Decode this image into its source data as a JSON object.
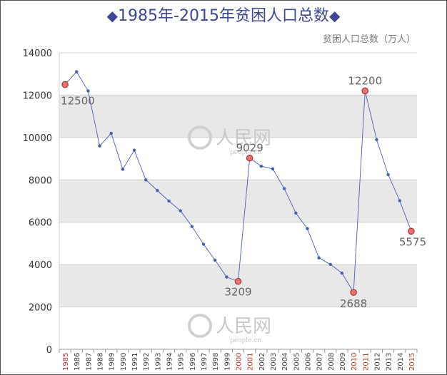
{
  "title_text": "1985年-2015年贫困人口总数",
  "diamond_glyph": "◆",
  "watermark": {
    "text": "人民网",
    "sub": "people.cn"
  },
  "chart_data": {
    "type": "line",
    "title": "1985年-2015年贫困人口总数",
    "ylabel": "贫困人口总数（万人）",
    "xlabel": "",
    "ylim": [
      0,
      14000
    ],
    "yticks": [
      0,
      2000,
      4000,
      6000,
      8000,
      10000,
      12000,
      14000
    ],
    "x": [
      "1985",
      "1986",
      "1987",
      "1988",
      "1989",
      "1990",
      "1991",
      "1992",
      "1993",
      "1994",
      "1995",
      "1996",
      "1997",
      "1998",
      "1999",
      "2000",
      "2001",
      "2002",
      "2003",
      "2004",
      "2005",
      "2006",
      "2007",
      "2008",
      "2009",
      "2010",
      "2011",
      "2012",
      "2013",
      "2014",
      "2015"
    ],
    "series": [
      {
        "name": "贫困人口总数",
        "color": "#4a5cb5",
        "values": [
          12500,
          13100,
          12200,
          9600,
          10200,
          8500,
          9400,
          8000,
          7500,
          7000,
          6540,
          5800,
          4962,
          4210,
          3412,
          3209,
          9029,
          8645,
          8517,
          7587,
          6432,
          5698,
          4320,
          4007,
          3597,
          2688,
          12200,
          9899,
          8249,
          7017,
          5575
        ]
      }
    ],
    "highlight_years": [
      "1985",
      "2000",
      "2001",
      "2010",
      "2011",
      "2015"
    ],
    "annotations": [
      {
        "x": "1985",
        "label": "12500"
      },
      {
        "x": "2000",
        "label": "3209"
      },
      {
        "x": "2001",
        "label": "9029"
      },
      {
        "x": "2010",
        "label": "2688"
      },
      {
        "x": "2011",
        "label": "12200"
      },
      {
        "x": "2015",
        "label": "5575"
      }
    ],
    "grid": true
  }
}
